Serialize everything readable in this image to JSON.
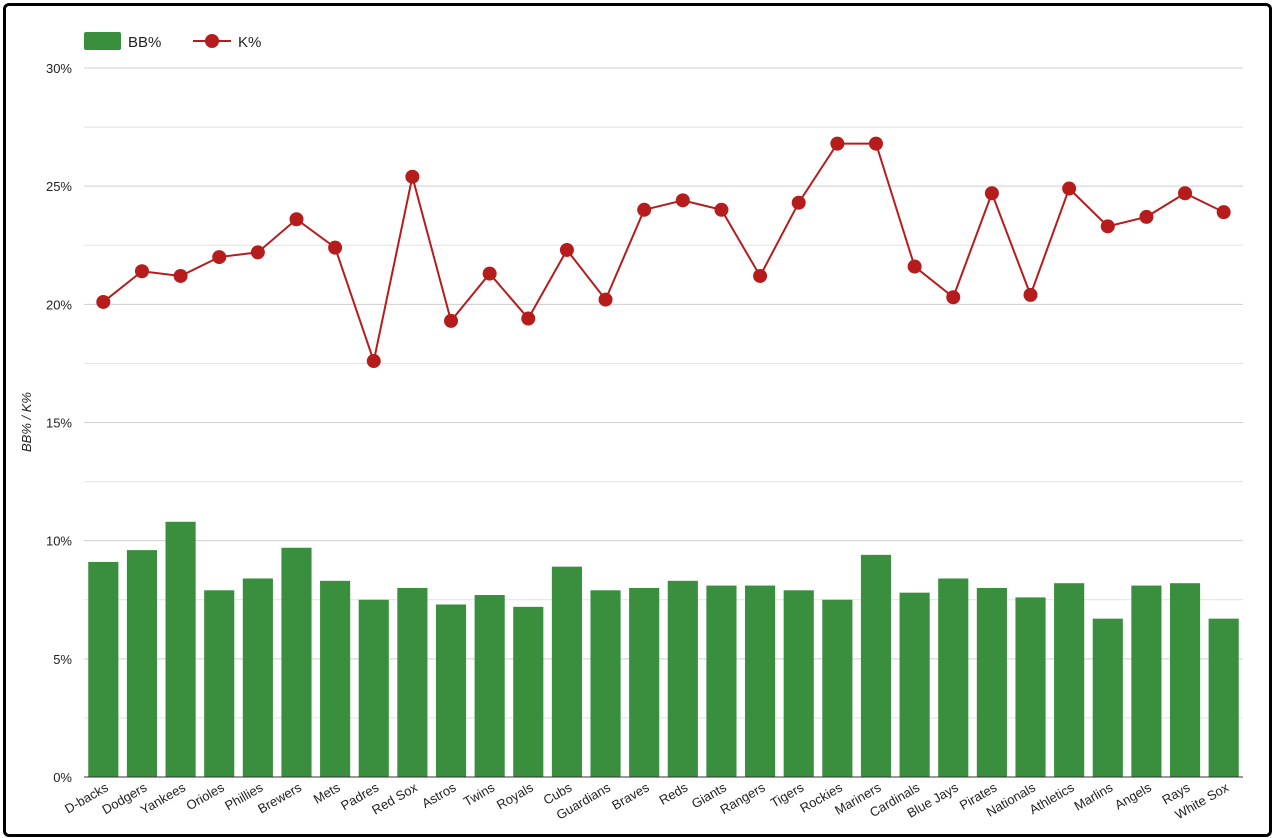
{
  "chart_data": {
    "type": "bar",
    "categories": [
      "D-backs",
      "Dodgers",
      "Yankees",
      "Orioles",
      "Phillies",
      "Brewers",
      "Mets",
      "Padres",
      "Red Sox",
      "Astros",
      "Twins",
      "Royals",
      "Cubs",
      "Guardians",
      "Braves",
      "Reds",
      "Giants",
      "Rangers",
      "Tigers",
      "Rockies",
      "Mariners",
      "Cardinals",
      "Blue Jays",
      "Pirates",
      "Nationals",
      "Athletics",
      "Marlins",
      "Angels",
      "Rays",
      "White Sox"
    ],
    "series": [
      {
        "name": "BB%",
        "type": "bar",
        "color": "#3a8f3e",
        "values": [
          9.1,
          9.6,
          10.8,
          7.9,
          8.4,
          9.7,
          8.3,
          7.5,
          8.0,
          7.3,
          7.7,
          7.2,
          8.9,
          7.9,
          8.0,
          8.3,
          8.1,
          8.1,
          7.9,
          7.5,
          9.4,
          7.8,
          8.4,
          8.0,
          7.6,
          8.2,
          6.7,
          8.1,
          8.2,
          6.7
        ]
      },
      {
        "name": "K%",
        "type": "line",
        "color": "#b71c1c",
        "values": [
          20.1,
          21.4,
          21.2,
          22.0,
          22.2,
          23.6,
          22.4,
          17.6,
          25.4,
          19.3,
          21.3,
          19.4,
          22.3,
          20.2,
          24.0,
          24.4,
          24.0,
          21.2,
          24.3,
          26.8,
          26.8,
          21.6,
          20.3,
          24.7,
          20.4,
          24.9,
          23.3,
          23.7,
          24.7,
          23.9
        ]
      }
    ],
    "ylabel": "BB% / K%",
    "xlabel": "",
    "ylim": [
      0,
      30
    ],
    "yticks": [
      "0%",
      "5%",
      "10%",
      "15%",
      "20%",
      "25%",
      "30%"
    ],
    "ytick_values": [
      0,
      5,
      10,
      15,
      20,
      25,
      30
    ],
    "grid": true,
    "legend_position": "top-left"
  }
}
